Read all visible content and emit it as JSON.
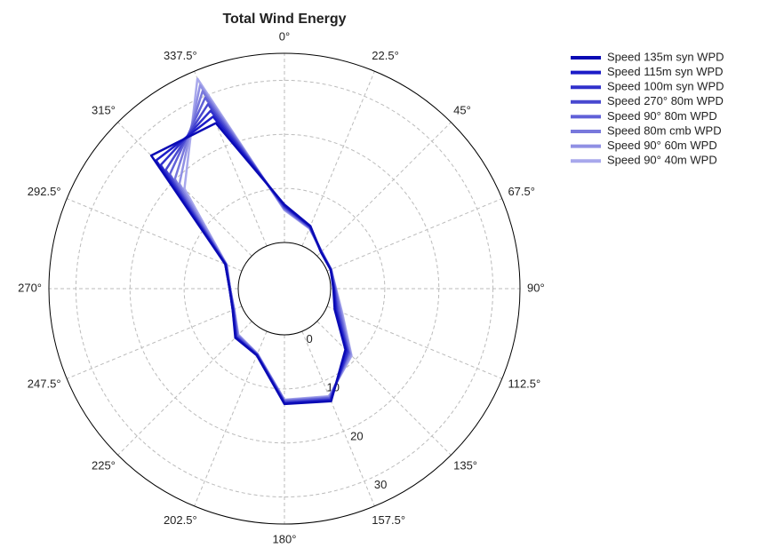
{
  "chart_data": {
    "type": "polar_line",
    "title": "Total Wind Energy",
    "categories": [
      "0°",
      "22.5°",
      "45°",
      "67.5°",
      "90°",
      "112.5°",
      "135°",
      "157.5°",
      "180°",
      "202.5°",
      "225°",
      "247.5°",
      "270°",
      "292.5°",
      "315°",
      "337.5°"
    ],
    "ylim": [
      0,
      35
    ],
    "yticks": [
      0,
      10,
      20,
      30
    ],
    "grid": true,
    "legend": "right",
    "series": [
      {
        "name": "Speed 135m syn WPD",
        "color": "#0a0ab4",
        "values": [
          7,
          4,
          1,
          0.7,
          0.5,
          1.5,
          7.4,
          14,
          12.8,
          4.8,
          4.3,
          1.8,
          1.6,
          3.3,
          26.3,
          24.6
        ]
      },
      {
        "name": "Speed 115m syn WPD",
        "color": "#1c1cc8",
        "values": [
          6.9,
          3.9,
          1.0,
          0.7,
          0.6,
          1.7,
          7.6,
          13.9,
          12.7,
          4.8,
          4.2,
          1.8,
          1.6,
          3.3,
          25.0,
          25.9
        ]
      },
      {
        "name": "Speed 100m syn WPD",
        "color": "#3030cc",
        "values": [
          6.7,
          3.9,
          1.1,
          0.7,
          0.6,
          1.9,
          7.9,
          13.7,
          12.6,
          4.7,
          4.1,
          1.7,
          1.6,
          3.2,
          23.8,
          27.1
        ]
      },
      {
        "name": "Speed 270° 80m WPD",
        "color": "#4848d0",
        "values": [
          6.6,
          3.8,
          1.1,
          0.7,
          0.7,
          2.1,
          8.1,
          13.6,
          12.5,
          4.7,
          4.0,
          1.7,
          1.6,
          3.2,
          22.5,
          28.4
        ]
      },
      {
        "name": "Speed 90° 80m WPD",
        "color": "#6060d8",
        "values": [
          6.4,
          3.7,
          1.1,
          0.8,
          0.8,
          2.4,
          8.3,
          13.4,
          12.3,
          4.6,
          3.8,
          1.6,
          1.5,
          3.1,
          21.4,
          29.7
        ]
      },
      {
        "name": "Speed 80m cmb WPD",
        "color": "#7878dc",
        "values": [
          6.3,
          3.6,
          1.1,
          0.8,
          0.9,
          2.6,
          8.5,
          13.3,
          12.2,
          4.6,
          3.7,
          1.6,
          1.5,
          3.1,
          20.1,
          31.0
        ]
      },
      {
        "name": "Speed 90° 60m WPD",
        "color": "#9090e4",
        "values": [
          6.1,
          3.6,
          1.2,
          0.8,
          0.9,
          2.8,
          8.8,
          13.1,
          12.1,
          4.5,
          3.6,
          1.5,
          1.5,
          3.0,
          18.9,
          32.2
        ]
      },
      {
        "name": "Speed 90° 40m WPD",
        "color": "#a8a8ec",
        "values": [
          6,
          3.5,
          1.2,
          0.8,
          1,
          3,
          9,
          13,
          12,
          4.5,
          3.5,
          1.5,
          1.5,
          3,
          17.6,
          33.5
        ]
      }
    ]
  }
}
